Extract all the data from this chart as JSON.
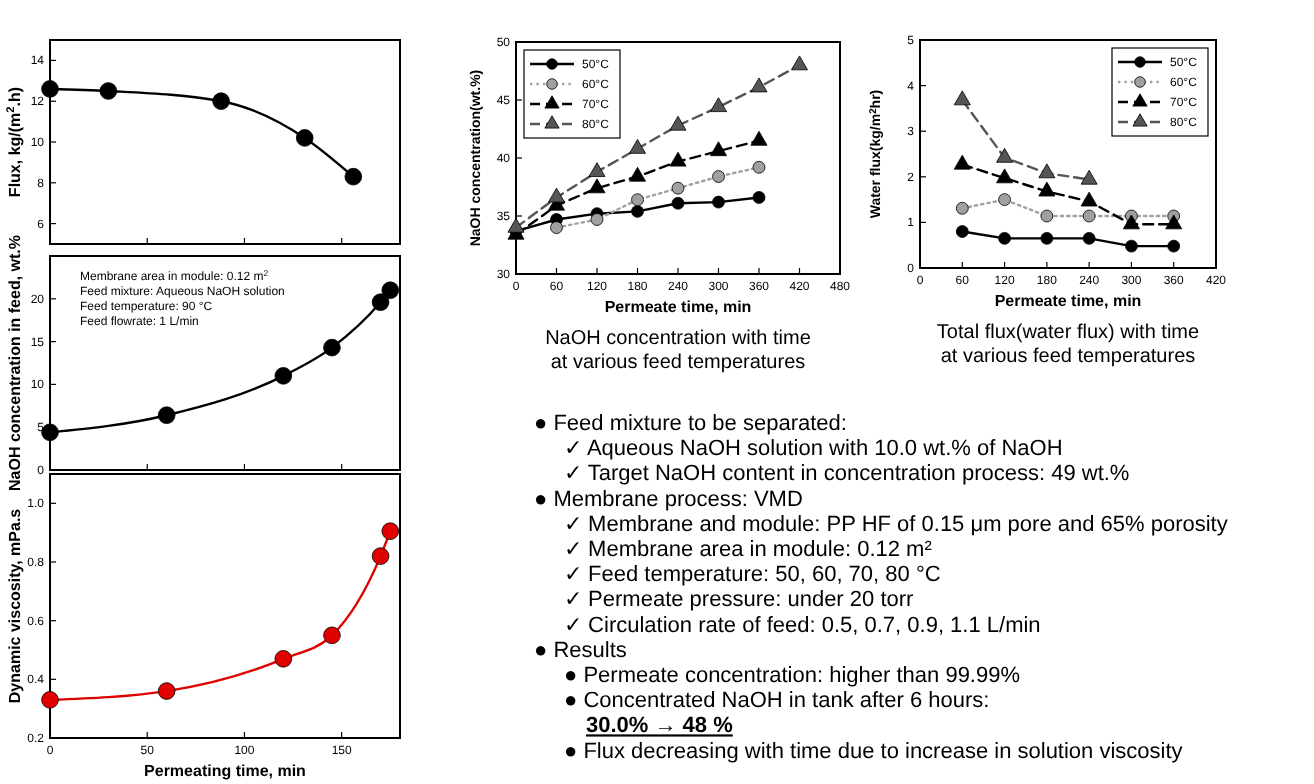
{
  "chart_data": [
    {
      "type": "line",
      "ylabel": "Flux, kg/(m$^{2}$.h)",
      "x": [
        0,
        30,
        88,
        131,
        156
      ],
      "xlim": [
        0,
        180
      ],
      "xticks": [
        0,
        50,
        100,
        150
      ],
      "ylim": [
        5,
        15
      ],
      "yticks": [
        6,
        8,
        10,
        12,
        14
      ],
      "tick_labels": "y",
      "marker": "circle",
      "line_style": "solid",
      "series": [
        {
          "color": "#000000",
          "values": [
            12.6,
            12.5,
            12.0,
            10.2,
            8.3
          ]
        }
      ]
    },
    {
      "type": "line",
      "ylabel": "NaOH concentration in feed, wt.%",
      "x": [
        0,
        60,
        120,
        145,
        170,
        175
      ],
      "xlim": [
        0,
        180
      ],
      "xticks": [
        0,
        50,
        100,
        150
      ],
      "ylim": [
        0,
        25
      ],
      "yticks": [
        0,
        5,
        10,
        15,
        20
      ],
      "tick_labels": "y",
      "marker": "circle",
      "line_style": "solid",
      "annotations": [
        "Membrane area in module: 0.12 m$^{2}$",
        "Feed mixture: Aqueous NaOH solution",
        "Feed temperature: 90 °C",
        "Feed flowrate: 1 L/min"
      ],
      "series": [
        {
          "color": "#000000",
          "values": [
            4.4,
            6.4,
            11.0,
            14.3,
            19.6,
            21.0
          ]
        }
      ]
    },
    {
      "type": "line",
      "xlabel": "Permeating time, min",
      "ylabel": "Dynamic viscosity, mPa.s",
      "x": [
        0,
        60,
        120,
        145,
        170,
        175
      ],
      "xlim": [
        0,
        180
      ],
      "xticks": [
        0,
        50,
        100,
        150
      ],
      "ylim": [
        0.2,
        1.1
      ],
      "yticks": [
        {
          "value": 0.2,
          "label": "0.2"
        },
        {
          "value": 0.4,
          "label": "0.4"
        },
        {
          "value": 0.6,
          "label": "0.6"
        },
        {
          "value": 0.8,
          "label": "0.8"
        },
        {
          "value": 1.0,
          "label": "1.0"
        }
      ],
      "marker": "circle",
      "line_style": "solid",
      "series": [
        {
          "color": "#e00000",
          "values": [
            0.33,
            0.36,
            0.47,
            0.55,
            0.82,
            0.905
          ]
        }
      ]
    },
    {
      "type": "line",
      "title": "NaOH concentration with time\nat various feed temperatures",
      "xlabel": "Permeate time, min",
      "ylabel": "NaOH concentration(wt.%)",
      "x": [
        0,
        60,
        120,
        180,
        240,
        300,
        360,
        420
      ],
      "xlim": [
        0,
        480
      ],
      "xticks": [
        0,
        60,
        120,
        180,
        240,
        300,
        360,
        420,
        480
      ],
      "ylim": [
        30,
        50
      ],
      "yticks": [
        30,
        35,
        40,
        45,
        50
      ],
      "legend": "top left",
      "series": [
        {
          "name": "50°C",
          "color": "#000000",
          "marker": "circle",
          "line_style": "solid",
          "values": [
            33.7,
            34.7,
            35.2,
            35.4,
            36.1,
            36.2,
            36.6,
            null
          ]
        },
        {
          "name": "60°C",
          "color": "#a0a0a0",
          "marker": "circle",
          "line_style": "dotted",
          "values": [
            null,
            34.0,
            34.7,
            36.4,
            37.4,
            38.4,
            39.2,
            null
          ]
        },
        {
          "name": "70°C",
          "color": "#000000",
          "marker": "triangle",
          "line_style": "dashed",
          "values": [
            33.4,
            35.9,
            37.4,
            38.4,
            39.7,
            40.6,
            41.5,
            null
          ]
        },
        {
          "name": "80°C",
          "color": "#555555",
          "marker": "triangle",
          "line_style": "dashed",
          "values": [
            34.0,
            36.6,
            38.8,
            40.8,
            42.8,
            44.4,
            46.1,
            48.0
          ]
        }
      ]
    },
    {
      "type": "line",
      "title": "Total flux(water flux) with time\nat various feed temperatures",
      "xlabel": "Permeate time, min",
      "ylabel": "Water flux(kg/m$^{2}$hr)",
      "x": [
        60,
        120,
        180,
        240,
        300,
        360
      ],
      "xlim": [
        0,
        420
      ],
      "xticks": [
        0,
        60,
        120,
        180,
        240,
        300,
        360,
        420
      ],
      "ylim": [
        0,
        5
      ],
      "yticks": [
        0,
        1,
        2,
        3,
        4,
        5
      ],
      "legend": "top right",
      "series": [
        {
          "name": "50°C",
          "color": "#000000",
          "marker": "circle",
          "line_style": "solid",
          "values": [
            0.8,
            0.65,
            0.65,
            0.65,
            0.48,
            0.48
          ]
        },
        {
          "name": "60°C",
          "color": "#a0a0a0",
          "marker": "circle",
          "line_style": "dotted",
          "values": [
            1.31,
            1.5,
            1.14,
            1.14,
            1.14,
            1.14
          ]
        },
        {
          "name": "70°C",
          "color": "#000000",
          "marker": "triangle",
          "line_style": "dashed",
          "values": [
            2.27,
            1.97,
            1.68,
            1.46,
            0.96,
            0.96
          ]
        },
        {
          "name": "80°C",
          "color": "#555555",
          "marker": "triangle",
          "line_style": "dashed",
          "values": [
            3.68,
            2.42,
            2.08,
            1.94,
            null,
            null
          ]
        }
      ]
    },
    {
      "type": "other",
      "annotations": [
        "● Feed mixture to be separated:",
        "✓ Aqueous NaOH solution with 10.0 wt.% of NaOH",
        "✓ Target NaOH content in concentration process: 49 wt.%",
        "● Membrane process: VMD",
        "✓ Membrane and module: PP HF of 0.15 μm pore and 65% porosity",
        "✓ Membrane area in module: 0.12 m²",
        "✓ Feed temperature: 50, 60, 70, 80 °C",
        "✓ Permeate pressure: under 20 torr",
        "✓ Circulation rate of feed: 0.5, 0.7, 0.9, 1.1 L/min",
        "● Results",
        "● Permeate concentration: higher than 99.99%",
        "● Concentrated NaOH in tank after 6 hours:",
        "30.0% → 48 %",
        "● Flux decreasing with time due to increase in solution viscosity"
      ]
    }
  ]
}
